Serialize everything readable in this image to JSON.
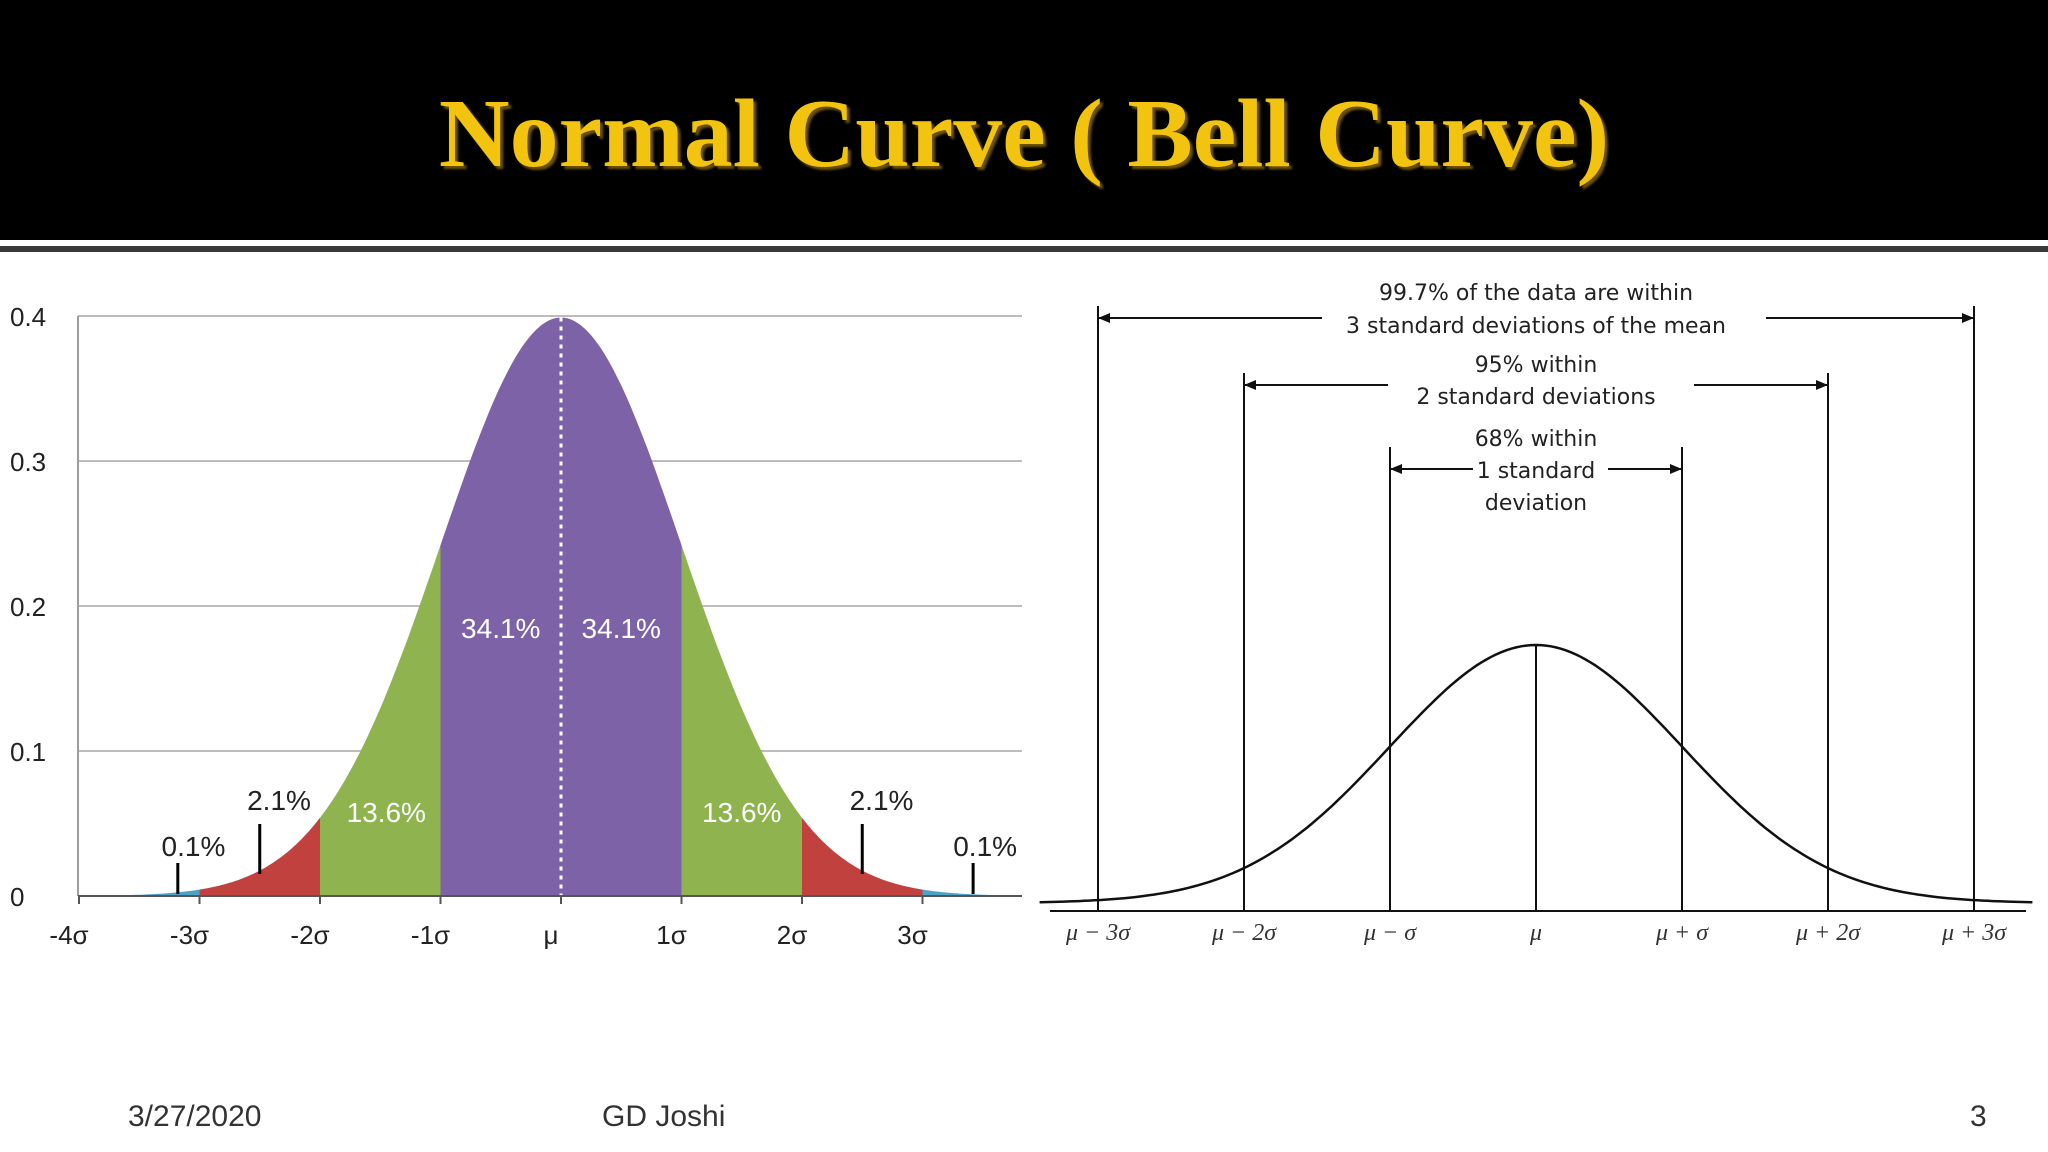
{
  "slide": {
    "title": "Normal Curve ( Bell Curve)",
    "footer_date": "3/27/2020",
    "footer_author": "GD Joshi",
    "page_number": "3"
  },
  "colors": {
    "title": "#f2c40f",
    "band1": "#7e62a8",
    "band2": "#8fb44f",
    "band3": "#c0413d",
    "band4": "#4ba3c7",
    "grid": "#bdbdbd"
  },
  "chart_data": [
    {
      "type": "area",
      "x_ticks": [
        "-4σ",
        "-3σ",
        "-2σ",
        "-1σ",
        "μ",
        "1σ",
        "2σ",
        "3σ"
      ],
      "x_tick_values": [
        -4,
        -3,
        -2,
        -1,
        0,
        1,
        2,
        3
      ],
      "xlim": [
        -4,
        3.8
      ],
      "y_ticks": [
        "0",
        "0.1",
        "0.2",
        "0.3",
        "0.4"
      ],
      "y_tick_values": [
        0,
        0.1,
        0.2,
        0.3,
        0.4
      ],
      "ylim": [
        0,
        0.4
      ],
      "grid": true,
      "bands": [
        {
          "from": -4,
          "to": -3,
          "percent": "0.1%",
          "color": "#4ba3c7"
        },
        {
          "from": -3,
          "to": -2,
          "percent": "2.1%",
          "color": "#c0413d"
        },
        {
          "from": -2,
          "to": -1,
          "percent": "13.6%",
          "color": "#8fb44f"
        },
        {
          "from": -1,
          "to": 0,
          "percent": "34.1%",
          "color": "#7e62a8"
        },
        {
          "from": 0,
          "to": 1,
          "percent": "34.1%",
          "color": "#7e62a8"
        },
        {
          "from": 1,
          "to": 2,
          "percent": "13.6%",
          "color": "#8fb44f"
        },
        {
          "from": 2,
          "to": 3,
          "percent": "2.1%",
          "color": "#c0413d"
        },
        {
          "from": 3,
          "to": 4,
          "percent": "0.1%",
          "color": "#4ba3c7"
        }
      ],
      "mean_line": "dotted"
    },
    {
      "type": "line",
      "x_ticks": [
        "μ − 3σ",
        "μ − 2σ",
        "μ − σ",
        "μ",
        "μ + σ",
        "μ + 2σ",
        "μ + 3σ"
      ],
      "x_tick_values": [
        -3,
        -2,
        -1,
        0,
        1,
        2,
        3
      ],
      "annotations": [
        {
          "lines": [
            "99.7% of the data are within",
            "3 standard deviations of the mean"
          ],
          "from": -3,
          "to": 3
        },
        {
          "lines": [
            "95% within",
            "2 standard deviations"
          ],
          "from": -2,
          "to": 2
        },
        {
          "lines": [
            "68% within",
            "1 standard",
            "deviation"
          ],
          "from": -1,
          "to": 1
        }
      ]
    }
  ]
}
